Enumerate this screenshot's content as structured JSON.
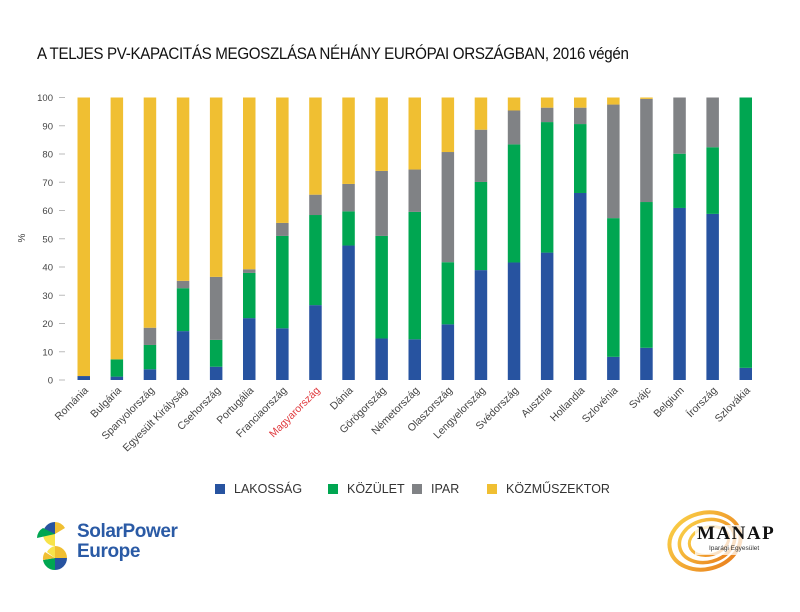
{
  "chart_data": {
    "type": "bar",
    "stacked": true,
    "title": "A TELJES PV-KAPACITÁS MEGOSZLÁSA NÉHÁNY EURÓPAI ORSZÁGBAN, 2016 végén",
    "xlabel": "",
    "ylabel": "%",
    "ylim": [
      0,
      100
    ],
    "yticks": [
      0,
      10,
      20,
      30,
      40,
      50,
      60,
      70,
      80,
      90,
      100
    ],
    "grid": false,
    "legend_position": "bottom",
    "highlight_category": "Magyarország",
    "highlight_color": "#e03a3e",
    "categories": [
      "Románia",
      "Bulgária",
      "Spanyolország",
      "Egyesült Királyság",
      "Csehország",
      "Portugália",
      "Franciaország",
      "Magyarország",
      "Dánia",
      "Görögország",
      "Németország",
      "Olaszország",
      "Lengyelország",
      "Svédország",
      "Ausztria",
      "Hollandia",
      "Szlovénia",
      "Svájc",
      "Belgium",
      "Írország",
      "Szlovákia"
    ],
    "series": [
      {
        "name": "LAKOSSÁG",
        "color": "#2753a0",
        "values": [
          1.4,
          1.2,
          3.8,
          17.3,
          4.7,
          21.9,
          18.3,
          26.5,
          47.6,
          14.7,
          14.4,
          19.7,
          38.9,
          41.6,
          45.1,
          66.2,
          8.2,
          11.4,
          60.9,
          58.8,
          4.3
        ]
      },
      {
        "name": "KÖZÜLET",
        "color": "#00a651",
        "values": [
          0.0,
          6.1,
          8.6,
          15.2,
          9.5,
          16.0,
          32.7,
          31.9,
          12.1,
          36.3,
          45.1,
          22.0,
          31.2,
          41.8,
          46.2,
          24.4,
          49.1,
          51.6,
          19.2,
          23.6,
          95.7
        ]
      },
      {
        "name": "IPAR",
        "color": "#808285",
        "values": [
          0.0,
          0.0,
          6.1,
          2.6,
          22.3,
          1.3,
          4.6,
          7.2,
          9.7,
          23.0,
          15.0,
          39.0,
          18.5,
          12.0,
          5.1,
          5.8,
          40.2,
          36.5,
          19.9,
          17.6,
          0.0
        ]
      },
      {
        "name": "KÖZMŰSZEKTOR",
        "color": "#f0bf32",
        "values": [
          98.6,
          92.7,
          81.5,
          64.9,
          63.5,
          60.8,
          44.4,
          34.4,
          30.6,
          26.0,
          25.5,
          19.3,
          11.4,
          4.6,
          3.6,
          3.6,
          2.5,
          0.5,
          0.0,
          0.0,
          0.0
        ]
      }
    ]
  },
  "logos": {
    "left": {
      "line1": "SolarPower",
      "line2": "Europe"
    },
    "right": {
      "name": "MANAP",
      "subtitle": "Iparági Egyesület"
    }
  }
}
